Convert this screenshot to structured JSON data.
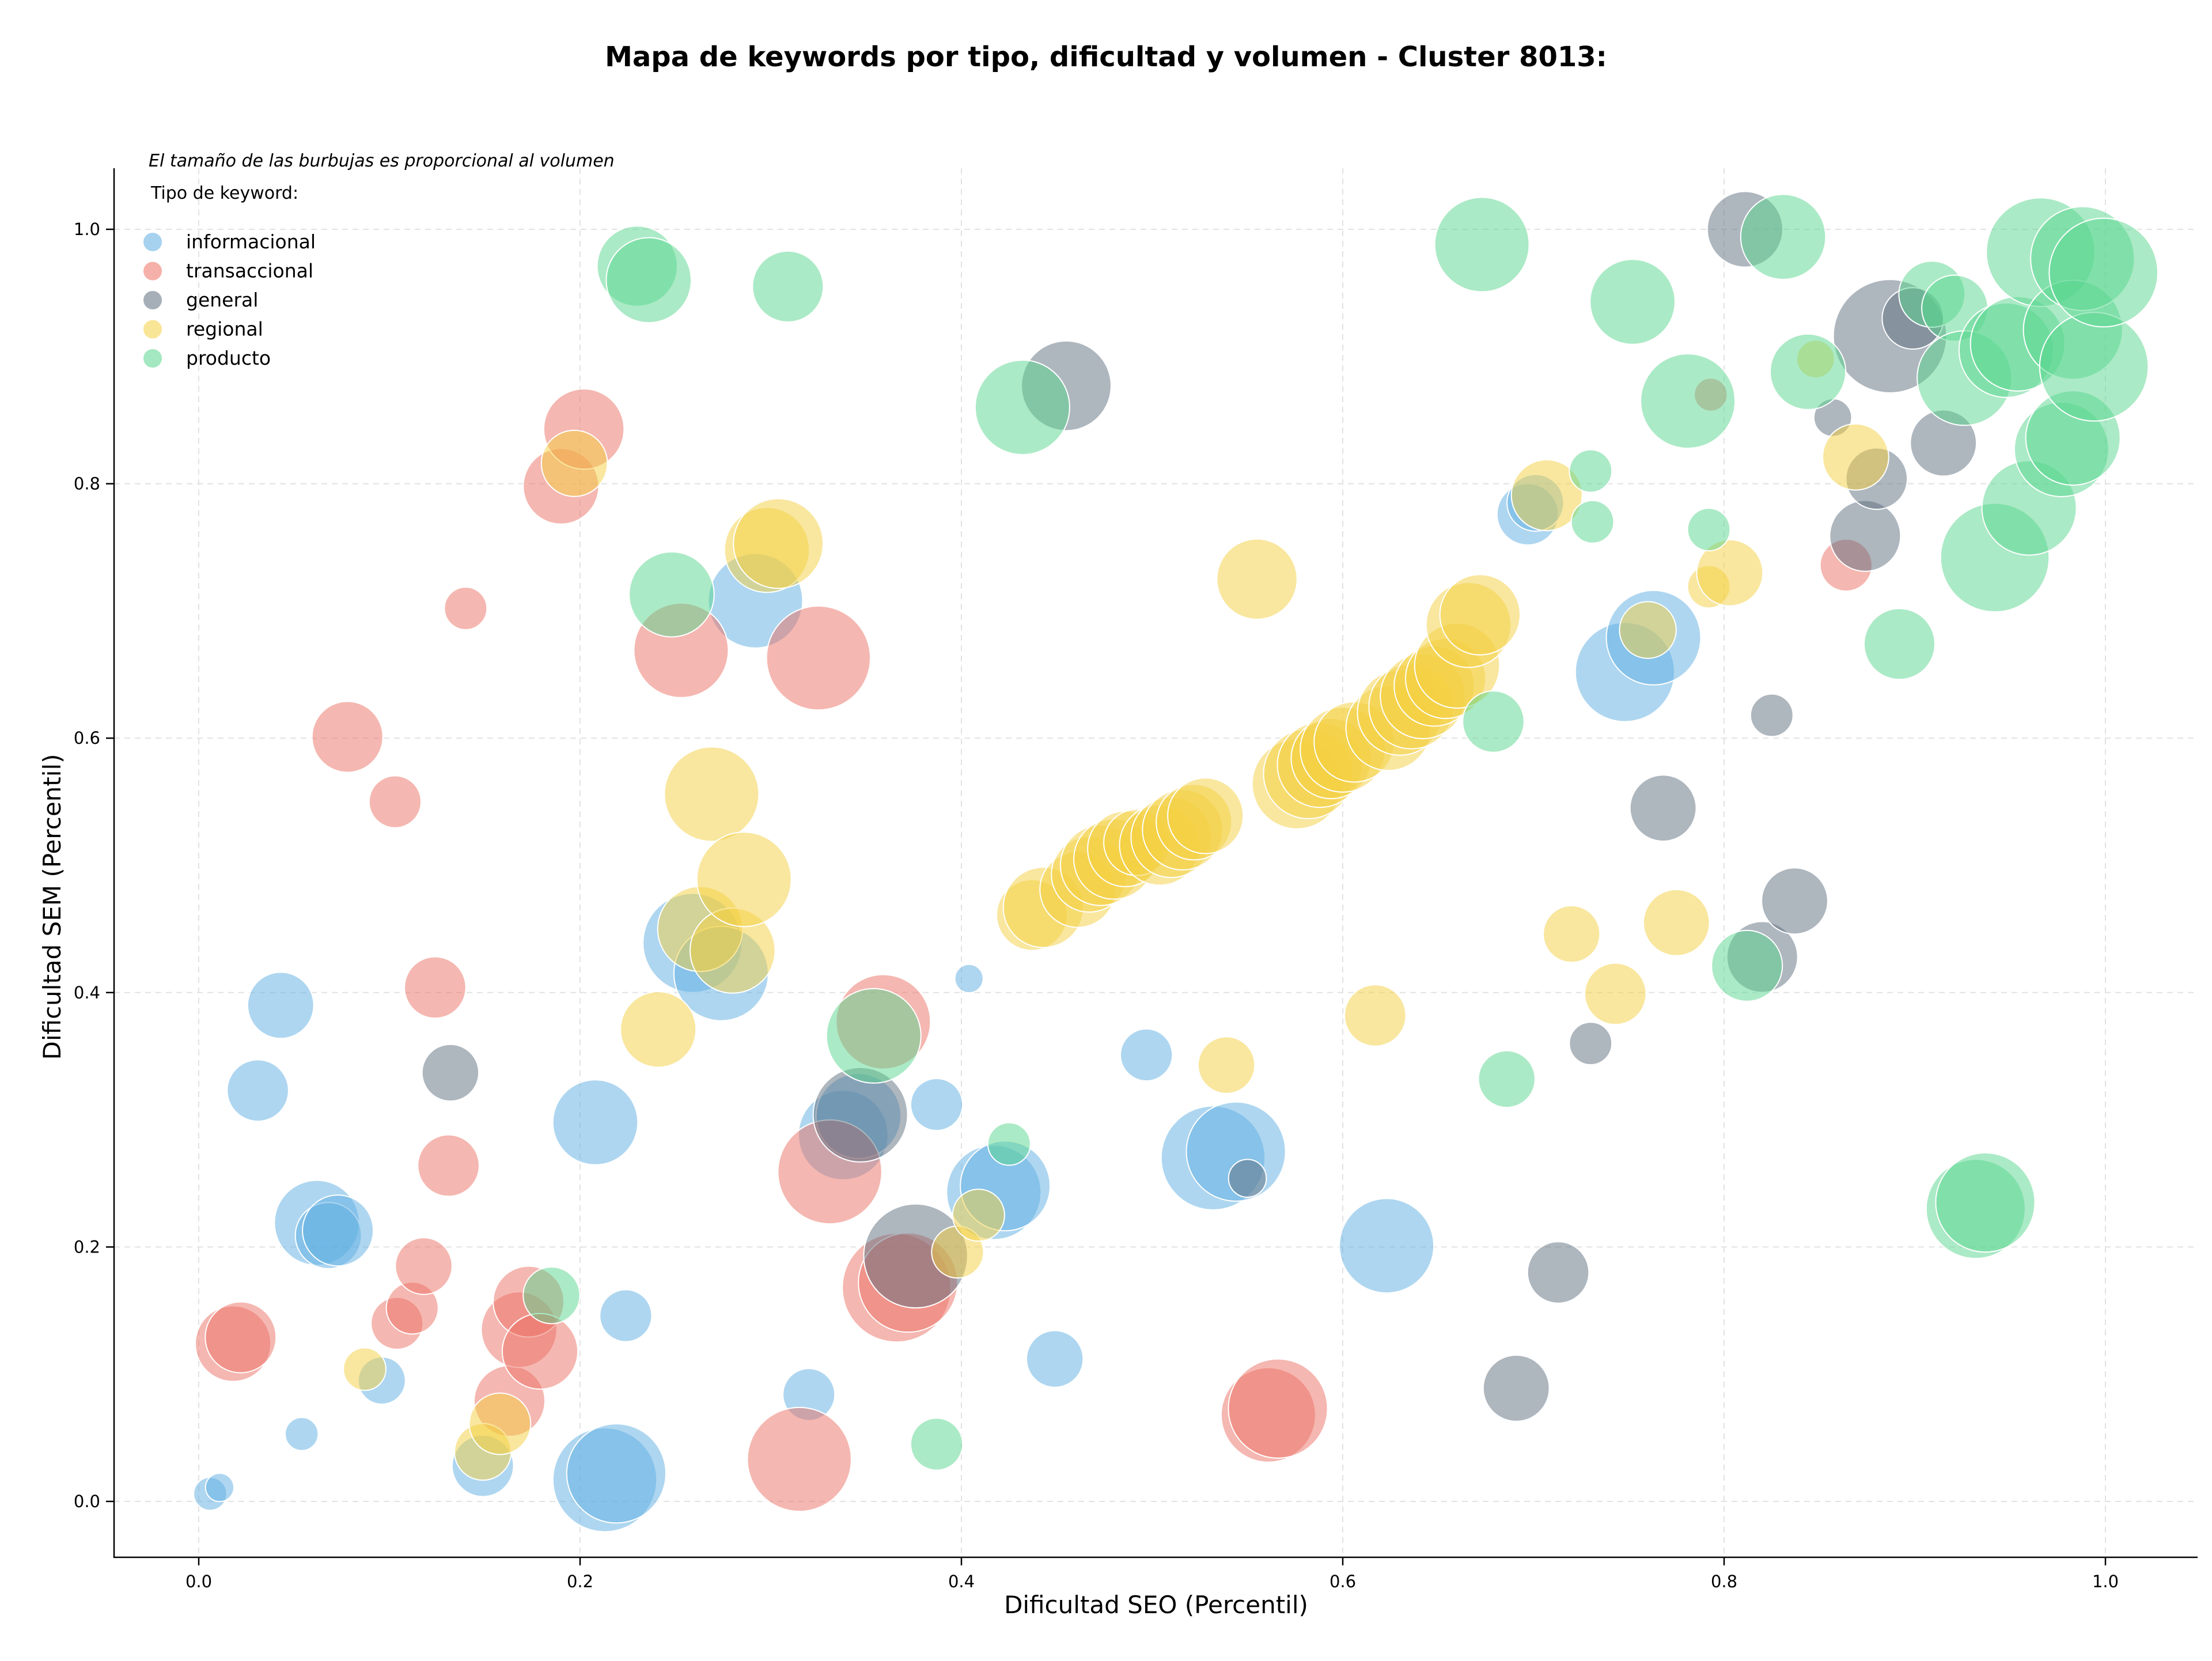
{
  "chart_data": {
    "type": "scatter",
    "title": "Mapa de keywords por tipo, dificultad y volumen - Cluster 8013:",
    "subtitle": "El tamaño de las burbujas es proporcional al volumen",
    "xlabel": "Dificultad SEO (Percentil)",
    "ylabel": "Dificultad SEM (Percentil)",
    "xlim": [
      -0.04,
      1.05
    ],
    "ylim": [
      -0.043,
      1.05
    ],
    "xticks": [
      "0.0",
      "0.2",
      "0.4",
      "0.6",
      "0.8",
      "1.0"
    ],
    "yticks": [
      "0.0",
      "0.2",
      "0.4",
      "0.6",
      "0.8",
      "1.0"
    ],
    "grid": true,
    "legend": {
      "title": "Tipo de keyword:",
      "placement": "top-left"
    },
    "series": [
      {
        "name": "informacional",
        "color": "#5DADE2",
        "points": [
          [
            0.006,
            0.006,
            14
          ],
          [
            0.011,
            0.011,
            12
          ],
          [
            0.031,
            0.323,
            26
          ],
          [
            0.043,
            0.39,
            28
          ],
          [
            0.054,
            0.053,
            14
          ],
          [
            0.062,
            0.219,
            36
          ],
          [
            0.068,
            0.209,
            28
          ],
          [
            0.073,
            0.213,
            30
          ],
          [
            0.096,
            0.095,
            20
          ],
          [
            0.149,
            0.028,
            26
          ],
          [
            0.208,
            0.298,
            36
          ],
          [
            0.213,
            0.017,
            44
          ],
          [
            0.219,
            0.022,
            42
          ],
          [
            0.224,
            0.146,
            22
          ],
          [
            0.259,
            0.439,
            42
          ],
          [
            0.274,
            0.415,
            40
          ],
          [
            0.292,
            0.708,
            40
          ],
          [
            0.32,
            0.084,
            22
          ],
          [
            0.338,
            0.288,
            38
          ],
          [
            0.346,
            0.303,
            36
          ],
          [
            0.387,
            0.312,
            22
          ],
          [
            0.404,
            0.411,
            12
          ],
          [
            0.417,
            0.243,
            40
          ],
          [
            0.423,
            0.248,
            38
          ],
          [
            0.449,
            0.112,
            24
          ],
          [
            0.497,
            0.351,
            22
          ],
          [
            0.532,
            0.27,
            44
          ],
          [
            0.544,
            0.275,
            42
          ],
          [
            0.623,
            0.201,
            40
          ],
          [
            0.697,
            0.776,
            26
          ],
          [
            0.701,
            0.785,
            24
          ],
          [
            0.748,
            0.652,
            42
          ],
          [
            0.763,
            0.679,
            40
          ]
        ]
      },
      {
        "name": "transaccional",
        "color": "#EC7063",
        "points": [
          [
            0.018,
            0.124,
            32
          ],
          [
            0.022,
            0.129,
            30
          ],
          [
            0.078,
            0.601,
            30
          ],
          [
            0.103,
            0.55,
            22
          ],
          [
            0.104,
            0.14,
            22
          ],
          [
            0.112,
            0.152,
            22
          ],
          [
            0.118,
            0.185,
            24
          ],
          [
            0.124,
            0.404,
            26
          ],
          [
            0.131,
            0.264,
            26
          ],
          [
            0.14,
            0.702,
            18
          ],
          [
            0.163,
            0.079,
            30
          ],
          [
            0.168,
            0.135,
            32
          ],
          [
            0.173,
            0.157,
            30
          ],
          [
            0.179,
            0.118,
            32
          ],
          [
            0.19,
            0.798,
            32
          ],
          [
            0.202,
            0.843,
            34
          ],
          [
            0.253,
            0.669,
            40
          ],
          [
            0.315,
            0.033,
            44
          ],
          [
            0.325,
            0.663,
            44
          ],
          [
            0.331,
            0.259,
            44
          ],
          [
            0.359,
            0.377,
            40
          ],
          [
            0.366,
            0.168,
            46
          ],
          [
            0.372,
            0.172,
            42
          ],
          [
            0.561,
            0.068,
            40
          ],
          [
            0.566,
            0.073,
            42
          ],
          [
            0.793,
            0.87,
            14
          ],
          [
            0.864,
            0.736,
            22
          ]
        ]
      },
      {
        "name": "general",
        "color": "#5D6D7E",
        "points": [
          [
            0.132,
            0.337,
            24
          ],
          [
            0.347,
            0.304,
            40
          ],
          [
            0.376,
            0.193,
            44
          ],
          [
            0.455,
            0.877,
            38
          ],
          [
            0.55,
            0.254,
            16
          ],
          [
            0.691,
            0.089,
            28
          ],
          [
            0.713,
            0.18,
            26
          ],
          [
            0.73,
            0.36,
            18
          ],
          [
            0.768,
            0.545,
            28
          ],
          [
            0.811,
            1.0,
            32
          ],
          [
            0.82,
            0.428,
            30
          ],
          [
            0.825,
            0.618,
            18
          ],
          [
            0.837,
            0.472,
            28
          ],
          [
            0.857,
            0.852,
            16
          ],
          [
            0.874,
            0.759,
            30
          ],
          [
            0.88,
            0.804,
            26
          ],
          [
            0.887,
            0.916,
            48
          ],
          [
            0.899,
            0.93,
            26
          ],
          [
            0.915,
            0.832,
            28
          ]
        ]
      },
      {
        "name": "regional",
        "color": "#F4D03F",
        "points": [
          [
            0.087,
            0.104,
            18
          ],
          [
            0.149,
            0.039,
            24
          ],
          [
            0.158,
            0.061,
            26
          ],
          [
            0.197,
            0.816,
            28
          ],
          [
            0.241,
            0.371,
            32
          ],
          [
            0.263,
            0.45,
            36
          ],
          [
            0.269,
            0.556,
            40
          ],
          [
            0.28,
            0.433,
            36
          ],
          [
            0.286,
            0.489,
            40
          ],
          [
            0.298,
            0.748,
            36
          ],
          [
            0.304,
            0.753,
            38
          ],
          [
            0.398,
            0.196,
            22
          ],
          [
            0.409,
            0.225,
            22
          ],
          [
            0.437,
            0.461,
            30
          ],
          [
            0.443,
            0.467,
            34
          ],
          [
            0.461,
            0.481,
            32
          ],
          [
            0.467,
            0.493,
            32
          ],
          [
            0.473,
            0.5,
            34
          ],
          [
            0.48,
            0.505,
            34
          ],
          [
            0.486,
            0.513,
            32
          ],
          [
            0.492,
            0.518,
            28
          ],
          [
            0.504,
            0.516,
            34
          ],
          [
            0.51,
            0.522,
            34
          ],
          [
            0.516,
            0.528,
            34
          ],
          [
            0.522,
            0.534,
            32
          ],
          [
            0.528,
            0.539,
            32
          ],
          [
            0.539,
            0.343,
            24
          ],
          [
            0.555,
            0.725,
            34
          ],
          [
            0.576,
            0.564,
            38
          ],
          [
            0.582,
            0.572,
            38
          ],
          [
            0.588,
            0.579,
            36
          ],
          [
            0.594,
            0.584,
            34
          ],
          [
            0.6,
            0.591,
            36
          ],
          [
            0.606,
            0.597,
            34
          ],
          [
            0.617,
            0.382,
            26
          ],
          [
            0.624,
            0.608,
            36
          ],
          [
            0.63,
            0.62,
            36
          ],
          [
            0.636,
            0.625,
            36
          ],
          [
            0.642,
            0.633,
            36
          ],
          [
            0.648,
            0.641,
            34
          ],
          [
            0.654,
            0.647,
            34
          ],
          [
            0.66,
            0.657,
            36
          ],
          [
            0.666,
            0.689,
            36
          ],
          [
            0.672,
            0.697,
            34
          ],
          [
            0.707,
            0.791,
            30
          ],
          [
            0.72,
            0.446,
            24
          ],
          [
            0.743,
            0.399,
            26
          ],
          [
            0.76,
            0.685,
            24
          ],
          [
            0.775,
            0.455,
            28
          ],
          [
            0.792,
            0.719,
            18
          ],
          [
            0.803,
            0.73,
            28
          ],
          [
            0.848,
            0.898,
            16
          ],
          [
            0.869,
            0.821,
            28
          ]
        ]
      },
      {
        "name": "producto",
        "color": "#58D68D",
        "points": [
          [
            0.185,
            0.162,
            24
          ],
          [
            0.23,
            0.971,
            34
          ],
          [
            0.236,
            0.96,
            36
          ],
          [
            0.248,
            0.713,
            36
          ],
          [
            0.309,
            0.955,
            30
          ],
          [
            0.354,
            0.366,
            40
          ],
          [
            0.387,
            0.045,
            22
          ],
          [
            0.425,
            0.281,
            18
          ],
          [
            0.432,
            0.86,
            40
          ],
          [
            0.673,
            0.988,
            40
          ],
          [
            0.679,
            0.613,
            26
          ],
          [
            0.686,
            0.332,
            24
          ],
          [
            0.73,
            0.81,
            18
          ],
          [
            0.731,
            0.77,
            18
          ],
          [
            0.752,
            0.943,
            36
          ],
          [
            0.781,
            0.865,
            40
          ],
          [
            0.792,
            0.764,
            18
          ],
          [
            0.812,
            0.421,
            30
          ],
          [
            0.831,
            0.994,
            36
          ],
          [
            0.844,
            0.888,
            32
          ],
          [
            0.892,
            0.674,
            30
          ],
          [
            0.909,
            0.949,
            28
          ],
          [
            0.921,
            0.938,
            28
          ],
          [
            0.926,
            0.883,
            40
          ],
          [
            0.932,
            0.23,
            42
          ],
          [
            0.937,
            0.235,
            42
          ],
          [
            0.942,
            0.742,
            46
          ],
          [
            0.948,
            0.905,
            40
          ],
          [
            0.954,
            0.91,
            40
          ],
          [
            0.96,
            0.781,
            40
          ],
          [
            0.966,
            0.982,
            46
          ],
          [
            0.977,
            0.827,
            40
          ],
          [
            0.983,
            0.921,
            42
          ],
          [
            0.983,
            0.836,
            40
          ],
          [
            0.988,
            0.977,
            44
          ],
          [
            0.994,
            0.892,
            46
          ],
          [
            0.999,
            0.966,
            46
          ]
        ]
      }
    ]
  }
}
